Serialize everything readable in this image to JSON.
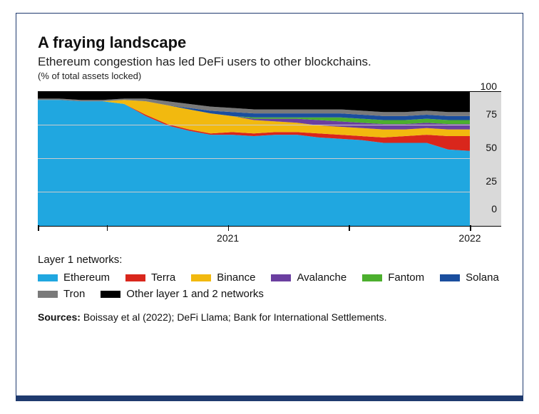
{
  "title": "A fraying landscape",
  "subtitle": "Ethereum congestion has led DeFi users to other blockchains.",
  "unit": "(% of total assets locked)",
  "chart": {
    "type": "stacked-area",
    "ylim": [
      0,
      100
    ],
    "yticks": [
      0,
      25,
      50,
      75,
      100
    ],
    "background_color": "#f5f5f5",
    "axis_strip_color": "#d9d9d9",
    "grid_color": "#cccccc",
    "xticks": [
      {
        "pos": 0.0,
        "label": ""
      },
      {
        "pos": 0.16,
        "label": ""
      },
      {
        "pos": 0.44,
        "label": "2021"
      },
      {
        "pos": 0.72,
        "label": ""
      },
      {
        "pos": 1.0,
        "label": "2022"
      }
    ],
    "x_samples": [
      0.0,
      0.05,
      0.1,
      0.15,
      0.2,
      0.25,
      0.3,
      0.35,
      0.4,
      0.45,
      0.5,
      0.55,
      0.6,
      0.65,
      0.7,
      0.75,
      0.8,
      0.85,
      0.9,
      0.95,
      1.0
    ],
    "series": [
      {
        "name": "Ethereum",
        "color": "#20a7e0",
        "values": [
          94,
          94,
          93,
          93,
          91,
          82,
          75,
          71,
          68,
          68,
          67,
          68,
          68,
          66,
          65,
          64,
          62,
          62,
          62,
          57,
          56
        ]
      },
      {
        "name": "Terra",
        "color": "#d9261c",
        "values": [
          0,
          0,
          0,
          0,
          0,
          1,
          1,
          1,
          1,
          2,
          2,
          2,
          2,
          3,
          3,
          3,
          4,
          5,
          6,
          10,
          11
        ]
      },
      {
        "name": "Binance",
        "color": "#f2b90f",
        "values": [
          0,
          0,
          0,
          0,
          3,
          10,
          14,
          15,
          15,
          12,
          10,
          8,
          7,
          6,
          6,
          6,
          6,
          5,
          5,
          5,
          5
        ]
      },
      {
        "name": "Avalanche",
        "color": "#6b3fa0",
        "values": [
          0,
          0,
          0,
          0,
          0,
          0,
          0,
          0,
          0,
          0,
          1,
          2,
          3,
          4,
          4,
          4,
          4,
          4,
          4,
          4,
          4
        ]
      },
      {
        "name": "Fantom",
        "color": "#4caf2e",
        "values": [
          0,
          0,
          0,
          0,
          0,
          0,
          0,
          0,
          0,
          0,
          1,
          1,
          1,
          2,
          3,
          3,
          3,
          3,
          3,
          3,
          3
        ]
      },
      {
        "name": "Solana",
        "color": "#1a4e9e",
        "values": [
          0,
          0,
          0,
          0,
          0,
          0,
          0,
          1,
          2,
          3,
          3,
          3,
          3,
          3,
          3,
          3,
          3,
          3,
          3,
          3,
          3
        ]
      },
      {
        "name": "Tron",
        "color": "#7a7a7a",
        "values": [
          1,
          1,
          1,
          1,
          1,
          2,
          3,
          3,
          3,
          3,
          3,
          3,
          3,
          3,
          3,
          3,
          3,
          3,
          3,
          3,
          3
        ]
      },
      {
        "name": "Other layer 1 and 2 networks",
        "color": "#000000",
        "values": [
          5,
          5,
          6,
          6,
          5,
          5,
          7,
          9,
          11,
          12,
          13,
          13,
          13,
          13,
          13,
          14,
          15,
          15,
          14,
          15,
          15
        ]
      }
    ]
  },
  "legend_title": "Layer 1 networks:",
  "sources_label": "Sources:",
  "sources_text": "Boissay et al (2022); DeFi Llama; Bank for International Settlements."
}
